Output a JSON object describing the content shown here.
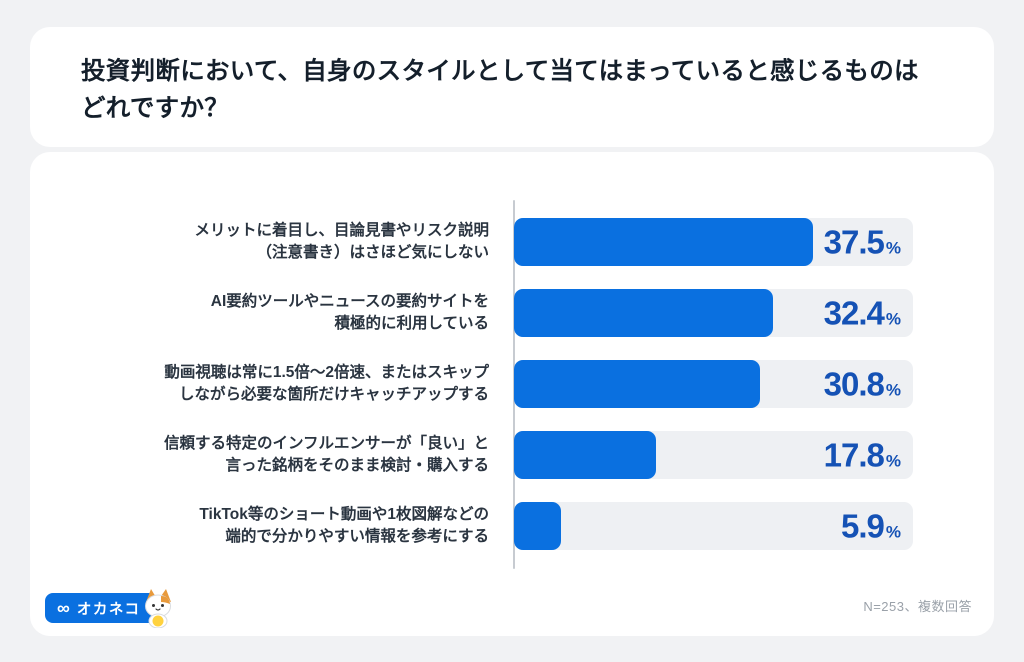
{
  "colors": {
    "page_background": "#f1f2f4",
    "card_background": "#ffffff",
    "bar": "#0a70e0",
    "track": "#eef0f3",
    "value_text": "#1552b5",
    "title_text": "#141f2b",
    "label_text": "#2a3440",
    "note_text": "#9aa1a9",
    "logo_background": "#0a70e0"
  },
  "header": {
    "title_lines": [
      "投資判断において、自身のスタイルとして当てはまっていると感じるものは",
      "どれですか？"
    ]
  },
  "chart_data": {
    "type": "bar",
    "orientation": "horizontal",
    "title": "投資判断において、自身のスタイルとして当てはまっていると感じるものはどれですか？",
    "categories": [
      [
        "メリットに着目し、目論見書やリスク説明",
        "（注意書き）はさほど気にしない"
      ],
      [
        "AI要約ツールやニュースの要約サイトを",
        "積極的に利用している"
      ],
      [
        "動画視聴は常に1.5倍〜2倍速、またはスキップ",
        "しながら必要な箇所だけキャッチアップする"
      ],
      [
        "信頼する特定のインフルエンサーが「良い」と",
        "言った銘柄をそのまま検討・購入する"
      ],
      [
        "TikTok等のショート動画や1枚図解などの",
        "端的で分かりやすい情報を参考にする"
      ]
    ],
    "values": [
      37.5,
      32.4,
      30.8,
      17.8,
      5.9
    ],
    "unit": "%",
    "xlim": [
      0,
      50
    ],
    "grid": false,
    "legend": false,
    "note": "N=253、複数回答"
  },
  "footer": {
    "logo_mark": "∞",
    "logo_text": "オカネコ",
    "note": "N=253、複数回答"
  }
}
